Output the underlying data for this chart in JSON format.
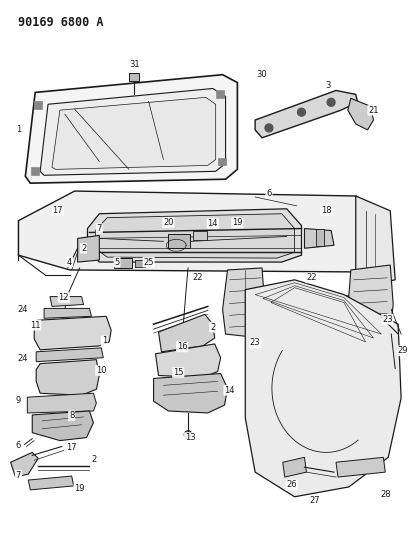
{
  "title": "90169 6800 A",
  "bg_color": "#ffffff",
  "line_color": "#1a1a1a",
  "fig_width": 4.08,
  "fig_height": 5.33,
  "dpi": 100,
  "label_fontsize": 6.0,
  "title_fontsize": 8.5
}
